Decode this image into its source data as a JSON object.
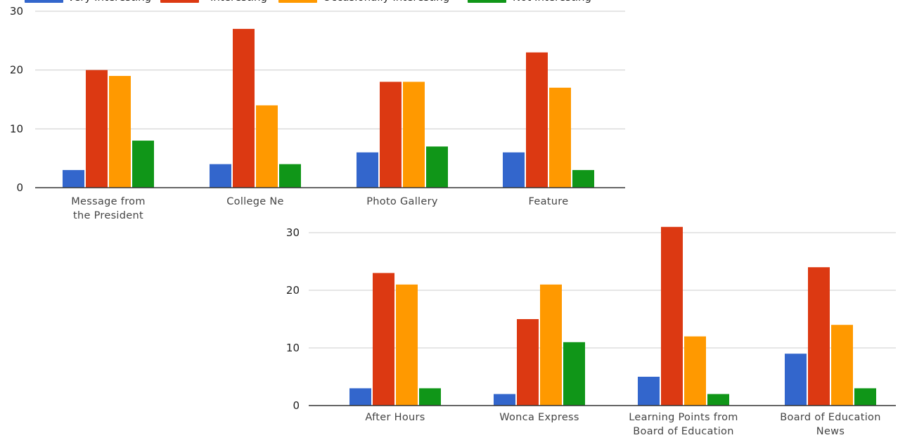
{
  "legend": [
    {
      "name": "Very Interesting",
      "color": "#3366cc"
    },
    {
      "name": "Interesting",
      "color": "#dc3912"
    },
    {
      "name": "Occasionally Interesting",
      "color": "#ff9900"
    },
    {
      "name": "Not Interesting",
      "color": "#109618"
    }
  ],
  "chart_data": [
    {
      "type": "bar",
      "title": "",
      "xlabel": "",
      "ylabel": "",
      "ylim": [
        0,
        30
      ],
      "yticks": [
        0,
        10,
        20,
        30
      ],
      "grid": true,
      "legend_position": "top",
      "categories": [
        [
          "Message from",
          "the President"
        ],
        [
          "College Ne"
        ],
        [
          "Photo Gallery"
        ],
        [
          "Feature"
        ]
      ],
      "series": [
        {
          "name": "Very Interesting",
          "color": "#3366cc",
          "values": [
            3,
            4,
            6,
            6
          ]
        },
        {
          "name": "Interesting",
          "color": "#dc3912",
          "values": [
            20,
            27,
            18,
            23
          ]
        },
        {
          "name": "Occasionally Interesting",
          "color": "#ff9900",
          "values": [
            19,
            14,
            18,
            17
          ]
        },
        {
          "name": "Not Interesting",
          "color": "#109618",
          "values": [
            8,
            4,
            7,
            3
          ]
        }
      ]
    },
    {
      "type": "bar",
      "title": "",
      "xlabel": "",
      "ylabel": "",
      "ylim": [
        0,
        30
      ],
      "yticks": [
        0,
        10,
        20,
        30
      ],
      "grid": true,
      "categories": [
        [
          "After Hours"
        ],
        [
          "Wonca Express"
        ],
        [
          "Learning Points from",
          "Board of Education"
        ],
        [
          "Board of Education",
          "News"
        ]
      ],
      "series": [
        {
          "name": "Very Interesting",
          "color": "#3366cc",
          "values": [
            3,
            2,
            5,
            9
          ]
        },
        {
          "name": "Interesting",
          "color": "#dc3912",
          "values": [
            23,
            15,
            31,
            24
          ]
        },
        {
          "name": "Occasionally Interesting",
          "color": "#ff9900",
          "values": [
            21,
            21,
            12,
            14
          ]
        },
        {
          "name": "Not Interesting",
          "color": "#109618",
          "values": [
            3,
            11,
            2,
            3
          ]
        }
      ]
    }
  ]
}
